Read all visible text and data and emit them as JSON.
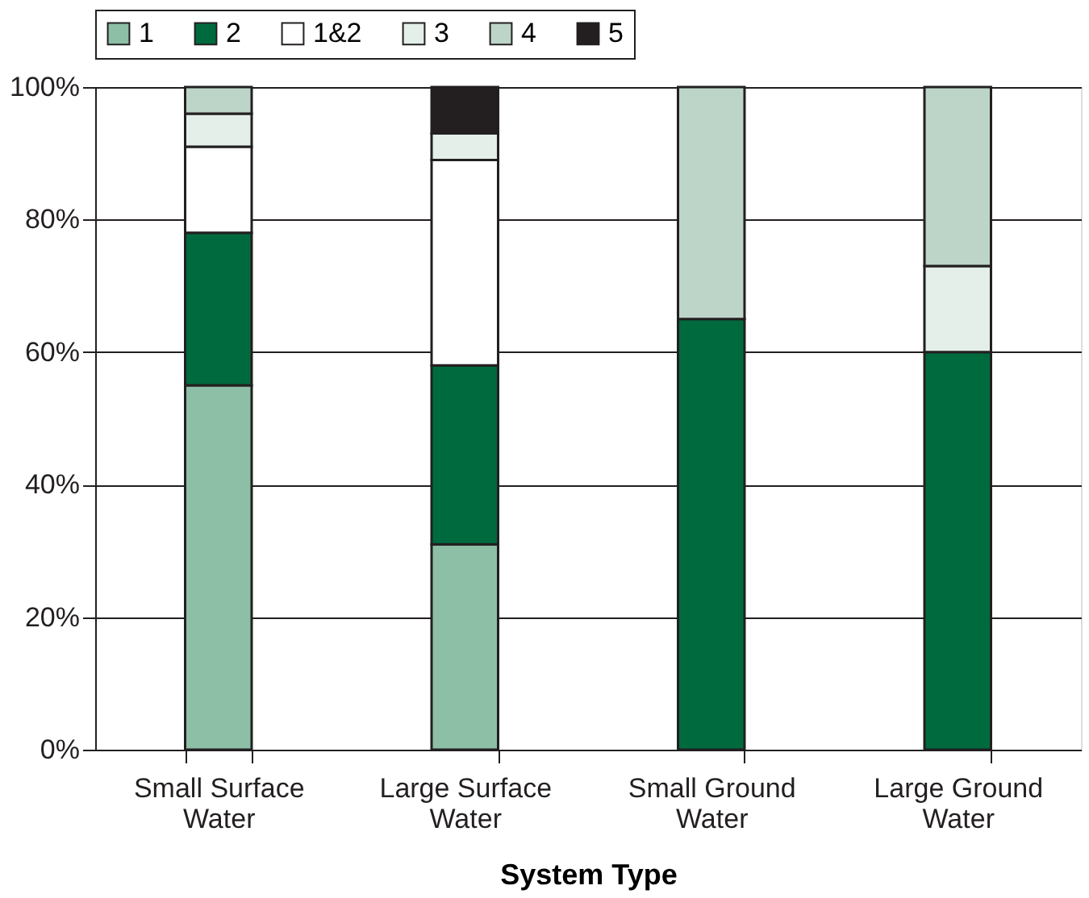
{
  "chart_data": {
    "type": "bar",
    "stacked": true,
    "xlabel": "System Type",
    "categories": [
      "Small Surface Water",
      "Large Surface Water",
      "Small Ground Water",
      "Large Ground Water"
    ],
    "series": [
      {
        "name": "1",
        "color": "#8cbfa6",
        "values": [
          55,
          31,
          null,
          null
        ]
      },
      {
        "name": "2",
        "color": "#006a3f",
        "values": [
          23,
          27,
          65,
          60
        ]
      },
      {
        "name": "1&2",
        "color": "#ffffff",
        "values": [
          13,
          31,
          null,
          null
        ]
      },
      {
        "name": "3",
        "color": "#e3efe8",
        "values": [
          5,
          4,
          null,
          13
        ]
      },
      {
        "name": "4",
        "color": "#bdd5c9",
        "values": [
          4,
          null,
          35,
          27
        ]
      },
      {
        "name": "5",
        "color": "#231f20",
        "values": [
          null,
          7,
          null,
          null
        ]
      }
    ],
    "ylim": [
      0,
      100
    ],
    "yticks": [
      {
        "value": 0,
        "label": "0%"
      },
      {
        "value": 20,
        "label": "20%"
      },
      {
        "value": 40,
        "label": "40%"
      },
      {
        "value": 60,
        "label": "60%"
      },
      {
        "value": 80,
        "label": "80%"
      },
      {
        "value": 100,
        "label": "100%"
      }
    ],
    "grid": "y",
    "legend": "top"
  }
}
